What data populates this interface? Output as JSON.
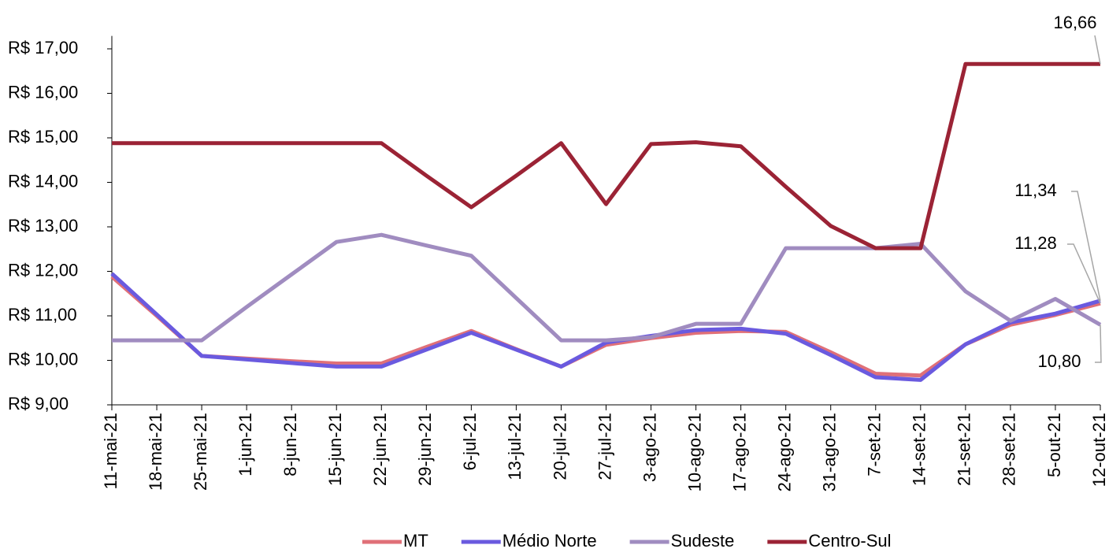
{
  "chart_data": {
    "type": "line",
    "categories": [
      "11-mai-21",
      "18-mai-21",
      "25-mai-21",
      "1-jun-21",
      "8-jun-21",
      "15-jun-21",
      "22-jun-21",
      "29-jun-21",
      "6-jul-21",
      "13-jul-21",
      "20-jul-21",
      "27-jul-21",
      "3-ago-21",
      "10-ago-21",
      "17-ago-21",
      "24-ago-21",
      "31-ago-21",
      "7-set-21",
      "14-set-21",
      "21-set-21",
      "28-set-21",
      "5-out-21",
      "12-out-21"
    ],
    "series": [
      {
        "name": "MT",
        "color": "#e07078",
        "values": [
          11.88,
          11.0,
          10.1,
          10.04,
          9.98,
          9.93,
          9.93,
          10.3,
          10.66,
          10.25,
          9.86,
          10.35,
          10.5,
          10.62,
          10.66,
          10.64,
          10.18,
          9.7,
          9.66,
          10.36,
          10.8,
          11.02,
          11.28
        ],
        "value_labels": [
          null,
          null,
          null,
          null,
          null,
          null,
          null,
          null,
          null,
          null,
          null,
          null,
          null,
          null,
          null,
          null,
          null,
          null,
          null,
          null,
          null,
          null,
          "11,28"
        ]
      },
      {
        "name": "Médio Norte",
        "color": "#6a5adf",
        "values": [
          11.95,
          11.03,
          10.1,
          10.02,
          9.94,
          9.86,
          9.86,
          10.24,
          10.62,
          10.24,
          9.86,
          10.4,
          10.55,
          10.68,
          10.71,
          10.6,
          10.12,
          9.62,
          9.56,
          10.36,
          10.85,
          11.05,
          11.34
        ],
        "value_labels": [
          null,
          null,
          null,
          null,
          null,
          null,
          null,
          null,
          null,
          null,
          null,
          null,
          null,
          null,
          null,
          null,
          null,
          null,
          null,
          null,
          null,
          null,
          "11,34"
        ]
      },
      {
        "name": "Sudeste",
        "color": "#a08cc0",
        "values": [
          10.45,
          10.45,
          10.45,
          11.2,
          11.93,
          12.66,
          12.82,
          12.58,
          12.35,
          11.4,
          10.45,
          10.45,
          10.52,
          10.82,
          10.82,
          12.52,
          12.52,
          12.52,
          12.62,
          11.55,
          10.89,
          11.38,
          10.8
        ],
        "value_labels": [
          null,
          null,
          null,
          null,
          null,
          null,
          null,
          null,
          null,
          null,
          null,
          null,
          null,
          null,
          null,
          null,
          null,
          null,
          null,
          null,
          null,
          null,
          "10,80"
        ]
      },
      {
        "name": "Centro-Sul",
        "color": "#9b2335",
        "values": [
          14.88,
          14.88,
          14.88,
          14.88,
          14.88,
          14.88,
          14.88,
          14.15,
          13.44,
          14.15,
          14.88,
          13.51,
          14.86,
          14.9,
          14.81,
          13.9,
          13.02,
          12.52,
          12.52,
          16.66,
          16.66,
          16.66,
          16.66
        ],
        "value_labels": [
          null,
          null,
          null,
          null,
          null,
          null,
          null,
          null,
          null,
          null,
          null,
          null,
          null,
          null,
          null,
          null,
          null,
          null,
          null,
          null,
          null,
          null,
          "16,66"
        ]
      }
    ],
    "ylim": [
      9,
      17.29
    ],
    "yticks": [
      {
        "value": 9,
        "label": "R$ 9,00"
      },
      {
        "value": 10,
        "label": "R$ 10,00"
      },
      {
        "value": 11,
        "label": "R$ 11,00"
      },
      {
        "value": 12,
        "label": "R$ 12,00"
      },
      {
        "value": 13,
        "label": "R$ 13,00"
      },
      {
        "value": 14,
        "label": "R$ 14,00"
      },
      {
        "value": 15,
        "label": "R$ 15,00"
      },
      {
        "value": 16,
        "label": "R$ 16,00"
      },
      {
        "value": 17,
        "label": "R$ 17,00"
      }
    ],
    "grid": false,
    "legend": "bottom"
  }
}
